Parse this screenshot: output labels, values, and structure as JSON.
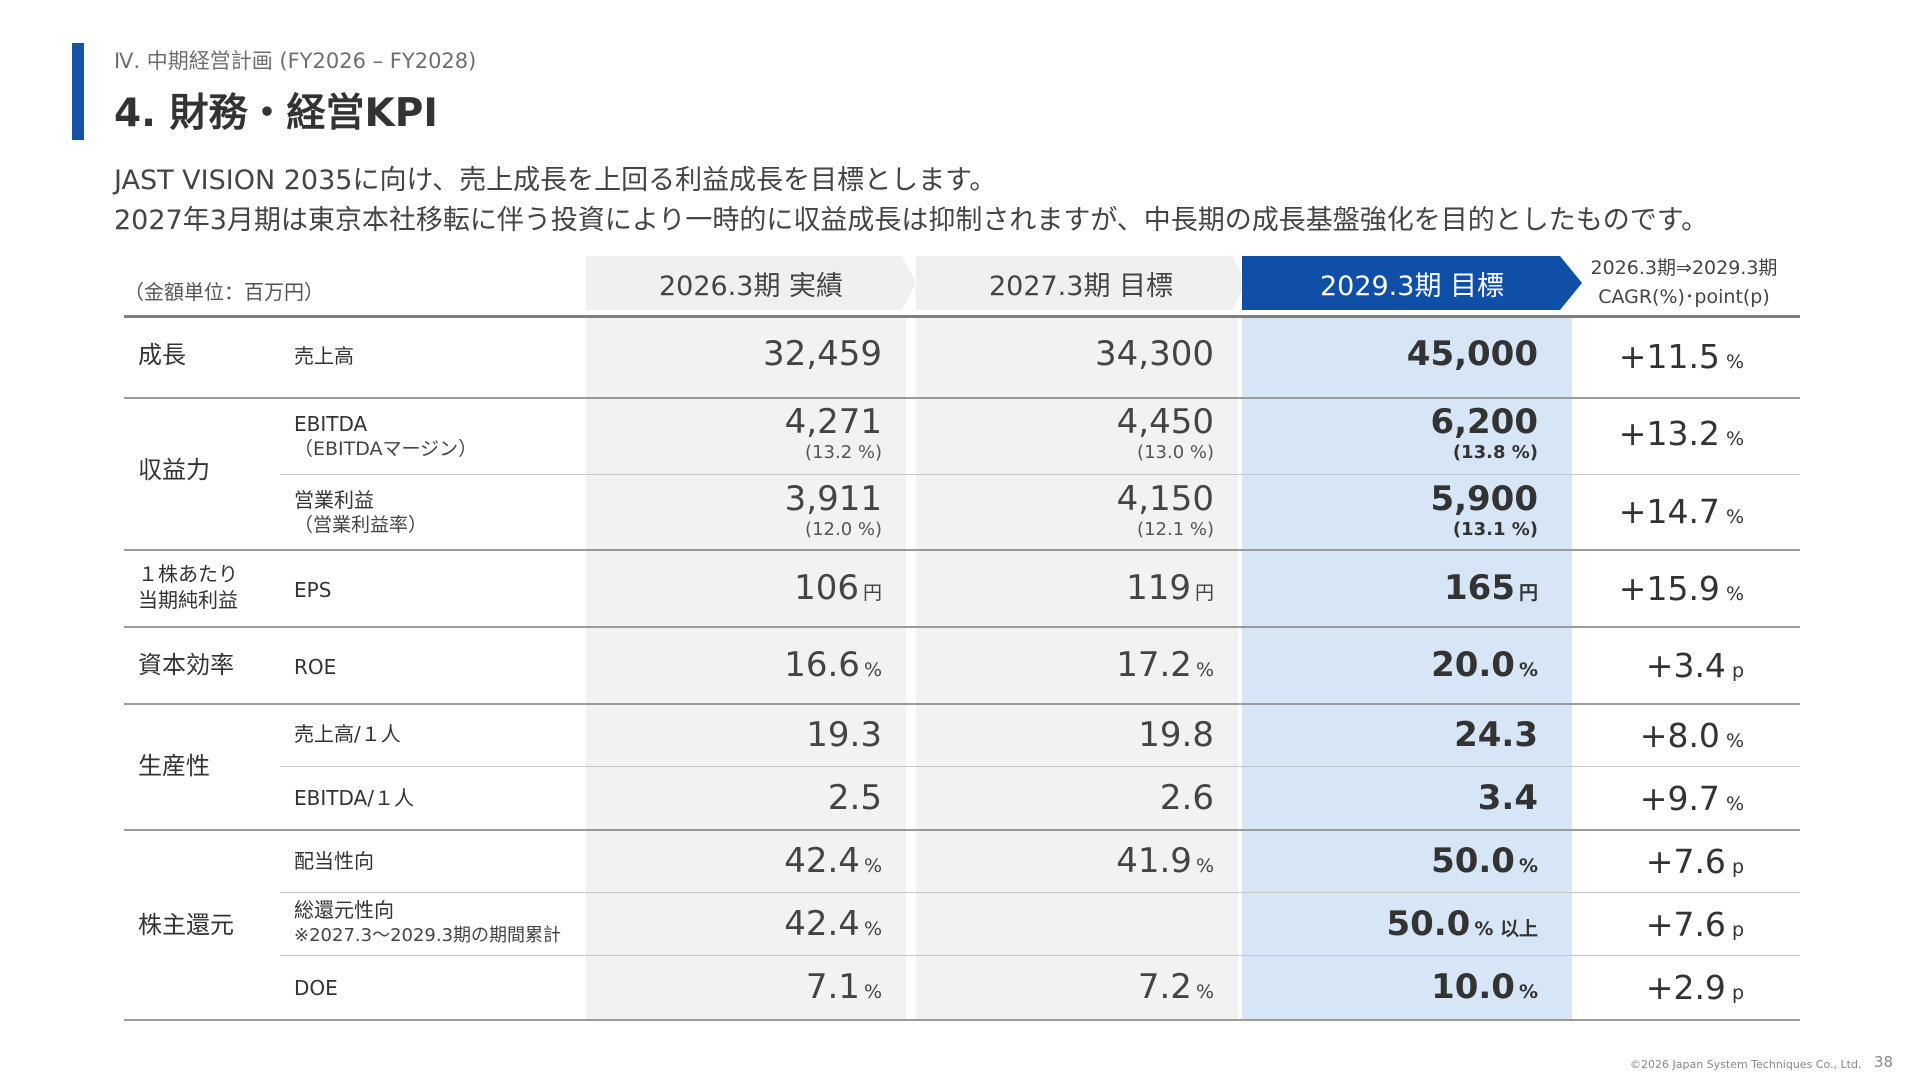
{
  "header": {
    "section": "Ⅳ. 中期経営計画 (FY2026 – FY2028)",
    "title": "4. 財務・経営KPI",
    "desc1": "JAST VISION 2035に向け、売上成長を上回る利益成長を目標とします。",
    "desc2": "2027年3月期は東京本社移転に伴う投資により一時的に収益成長は抑制されますが、中長期の成長基盤強化を目的としたものです。"
  },
  "table": {
    "unit": "（金額単位：百万円）",
    "col1": "2026.3期 実績",
    "col2": "2027.3期 目標",
    "col3": "2029.3期 目標",
    "cagr1": "2026.3期⇒2029.3期",
    "cagr2": "CAGR(%)･point(p)",
    "rows": {
      "sales": {
        "cat": "成長",
        "metric": "売上高",
        "v1": "32,459",
        "v2": "34,300",
        "v3": "45,000",
        "cagr": "+11.5",
        "cagr_unit": "%"
      },
      "ebitda": {
        "cat": "収益力",
        "metric": "EBITDA",
        "sub": "（EBITDAマージン）",
        "v1": "4,271",
        "r1": "(13.2 %)",
        "v2": "4,450",
        "r2": "(13.0 %)",
        "v3": "6,200",
        "r3": "(13.8 %)",
        "cagr": "+13.2",
        "cagr_unit": "%"
      },
      "op": {
        "metric": "営業利益",
        "sub": "（営業利益率）",
        "v1": "3,911",
        "r1": "(12.0 %)",
        "v2": "4,150",
        "r2": "(12.1 %)",
        "v3": "5,900",
        "r3": "(13.1 %)",
        "cagr": "+14.7",
        "cagr_unit": "%"
      },
      "eps": {
        "cat1": "１株あたり",
        "cat2": "当期純利益",
        "metric": "EPS",
        "v1": "106",
        "v2": "119",
        "v3": "165",
        "unit": "円",
        "cagr": "+15.9",
        "cagr_unit": "%"
      },
      "roe": {
        "cat": "資本効率",
        "metric": "ROE",
        "v1": "16.6",
        "v2": "17.2",
        "v3": "20.0",
        "unit": "%",
        "cagr": "+3.4",
        "cagr_unit": "p"
      },
      "prod1": {
        "cat": "生産性",
        "metric": "売上高/１人",
        "v1": "19.3",
        "v2": "19.8",
        "v3": "24.3",
        "cagr": "+8.0",
        "cagr_unit": "%"
      },
      "prod2": {
        "metric": "EBITDA/１人",
        "v1": "2.5",
        "v2": "2.6",
        "v3": "3.4",
        "cagr": "+9.7",
        "cagr_unit": "%"
      },
      "payout": {
        "cat": "株主還元",
        "metric": "配当性向",
        "v1": "42.4",
        "v2": "41.9",
        "v3": "50.0",
        "unit": "%",
        "cagr": "+7.6",
        "cagr_unit": "p"
      },
      "total": {
        "metric": "総還元性向",
        "sub": "※2027.3～2029.3期の期間累計",
        "v1": "42.4",
        "v3": "50.0",
        "unit": "%",
        "v3_unit": "% 以上",
        "cagr": "+7.6",
        "cagr_unit": "p"
      },
      "doe": {
        "metric": "DOE",
        "v1": "7.1",
        "v2": "7.2",
        "v3": "10.0",
        "unit": "%",
        "cagr": "+2.9",
        "cagr_unit": "p"
      }
    }
  },
  "footer": {
    "copyright": "©2026 Japan System Techniques Co., Ltd.",
    "page": "38"
  },
  "colors": {
    "accent": "#1552a8",
    "header_blue": "#0f4fa8",
    "highlight": "#d6e6f7",
    "gray": "#f2f2f2"
  }
}
